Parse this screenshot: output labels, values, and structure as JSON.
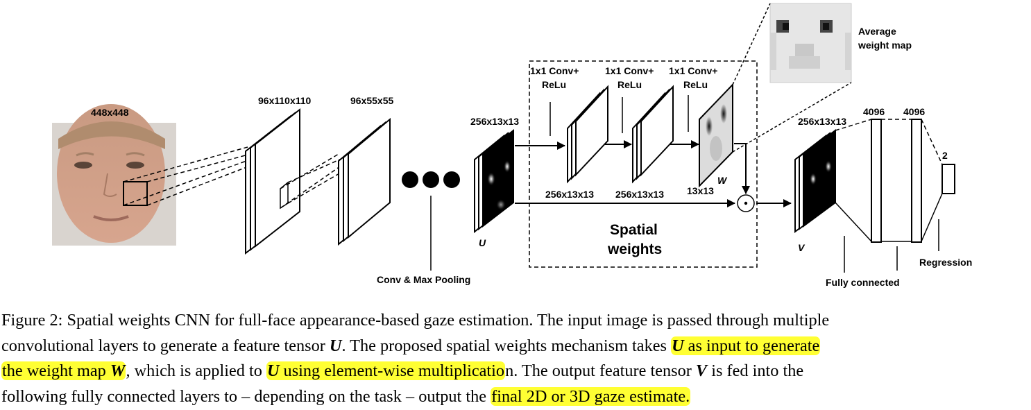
{
  "diagram": {
    "input_size": "448x448",
    "conv1_size": "96x110x110",
    "pool1_size": "96x55x55",
    "conv_pool_label": "Conv & Max Pooling",
    "u_size": "256x13x13",
    "u_label": "U",
    "conv_label_1": [
      "1x1 Conv+",
      "ReLu"
    ],
    "conv_label_2": [
      "1x1 Conv+",
      "ReLu"
    ],
    "conv_label_3": [
      "1x1 Conv+",
      "ReLu"
    ],
    "sw_out_1": "256x13x13",
    "sw_out_2": "256x13x13",
    "w_size": "13x13",
    "w_label": "W",
    "spatial_weights_label": [
      "Spatial",
      "weights"
    ],
    "avg_weight_label": [
      "Average",
      "weight map"
    ],
    "v_size": "256x13x13",
    "v_label": "V",
    "fc1_size": "4096",
    "fc2_size": "4096",
    "out_size": "2",
    "fc_label": "Fully connected",
    "regression_label": "Regression",
    "multiply_symbol": "·"
  },
  "caption": {
    "l1": "Figure 2: Spatial weights CNN for full-face appearance-based gaze estimation. The input image is passed through multiple",
    "l2a": "convolutional layers to generate a feature tensor ",
    "l2_u": "U",
    "l2b": ". The proposed spatial weights mechanism takes ",
    "l2_hl_u": "U",
    "l2_hl": " as input to generate",
    "l3_hl": "the weight map ",
    "l3_hl_w": "W",
    "l3a": ", which is applied to ",
    "l3_hl2_u": "U",
    "l3_hl2": " using element-wise multiplicatio",
    "l3b": "n. The output feature tensor ",
    "l3_v": "V",
    "l3c": " is fed into the",
    "l4a": "following fully connected layers to – depending on the task – output the ",
    "l4_hl": "final 2D or 3D gaze estimate."
  },
  "colors": {
    "highlight": "#ffff33",
    "ink": "#000000"
  }
}
